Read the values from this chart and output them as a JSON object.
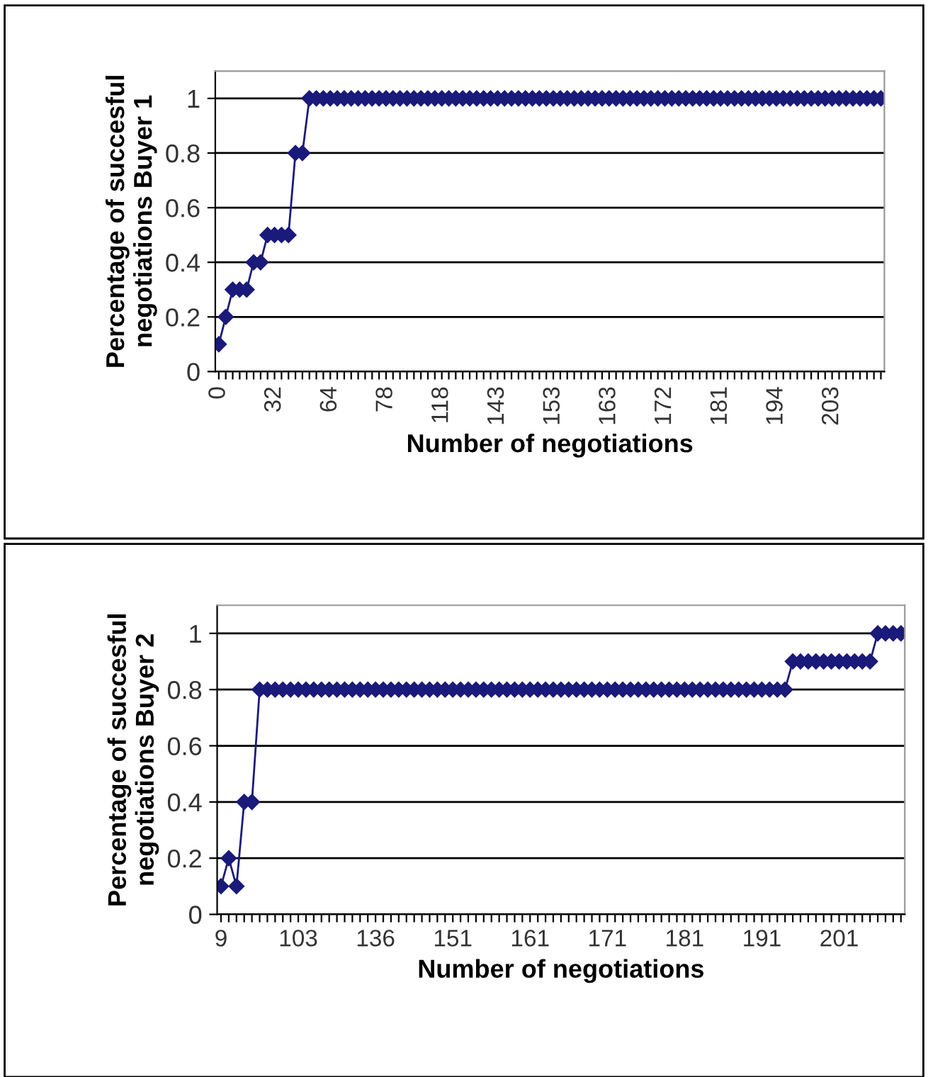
{
  "chart_data": [
    {
      "type": "line",
      "xlabel": "Number of negotiations",
      "ylabel": "Percentage of succesful\nnegotiations Buyer 1",
      "ylim": [
        0,
        1.1
      ],
      "yticks": [
        0,
        0.2,
        0.4,
        0.6,
        0.8,
        1
      ],
      "grid": "y",
      "marker": "diamond",
      "line_style": "solid",
      "legend": false,
      "categories": [
        "0",
        null,
        null,
        null,
        null,
        null,
        null,
        null,
        "32",
        null,
        null,
        null,
        null,
        null,
        null,
        null,
        "64",
        null,
        null,
        null,
        null,
        null,
        null,
        null,
        "78",
        null,
        null,
        null,
        null,
        null,
        null,
        null,
        "118",
        null,
        null,
        null,
        null,
        null,
        null,
        null,
        "143",
        null,
        null,
        null,
        null,
        null,
        null,
        null,
        "153",
        null,
        null,
        null,
        null,
        null,
        null,
        null,
        "163",
        null,
        null,
        null,
        null,
        null,
        null,
        null,
        "172",
        null,
        null,
        null,
        null,
        null,
        null,
        null,
        "181",
        null,
        null,
        null,
        null,
        null,
        null,
        null,
        "194",
        null,
        null,
        null,
        null,
        null,
        null,
        null,
        "203",
        null,
        null,
        null,
        null,
        null,
        null,
        null
      ],
      "series": [
        {
          "color": "#1a1a7a",
          "values": [
            0.1,
            0.2,
            0.3,
            0.3,
            0.3,
            0.4,
            0.4,
            0.5,
            0.5,
            0.5,
            0.5,
            0.8,
            0.8,
            1,
            1,
            1,
            1,
            1,
            1,
            1,
            1,
            1,
            1,
            1,
            1,
            1,
            1,
            1,
            1,
            1,
            1,
            1,
            1,
            1,
            1,
            1,
            1,
            1,
            1,
            1,
            1,
            1,
            1,
            1,
            1,
            1,
            1,
            1,
            1,
            1,
            1,
            1,
            1,
            1,
            1,
            1,
            1,
            1,
            1,
            1,
            1,
            1,
            1,
            1,
            1,
            1,
            1,
            1,
            1,
            1,
            1,
            1,
            1,
            1,
            1,
            1,
            1,
            1,
            1,
            1,
            1,
            1,
            1,
            1,
            1,
            1,
            1,
            1,
            1,
            1,
            1,
            1,
            1,
            1,
            1,
            1
          ]
        }
      ]
    },
    {
      "type": "line",
      "xlabel": "Number of negotiations",
      "ylabel": "Percentage of succesful\nnegotiations Buyer 2",
      "ylim": [
        0,
        1.1
      ],
      "yticks": [
        0,
        0.2,
        0.4,
        0.6,
        0.8,
        1
      ],
      "grid": "y",
      "marker": "diamond",
      "line_style": "solid",
      "legend": false,
      "categories": [
        "9",
        null,
        null,
        null,
        null,
        null,
        null,
        null,
        null,
        null,
        "103",
        null,
        null,
        null,
        null,
        null,
        null,
        null,
        null,
        null,
        "136",
        null,
        null,
        null,
        null,
        null,
        null,
        null,
        null,
        null,
        "151",
        null,
        null,
        null,
        null,
        null,
        null,
        null,
        null,
        null,
        "161",
        null,
        null,
        null,
        null,
        null,
        null,
        null,
        null,
        null,
        "171",
        null,
        null,
        null,
        null,
        null,
        null,
        null,
        null,
        null,
        "181",
        null,
        null,
        null,
        null,
        null,
        null,
        null,
        null,
        null,
        "191",
        null,
        null,
        null,
        null,
        null,
        null,
        null,
        null,
        null,
        "201",
        null,
        null,
        null,
        null,
        null,
        null,
        null,
        null
      ],
      "series": [
        {
          "color": "#1a1a7a",
          "values": [
            0.1,
            0.2,
            0.1,
            0.4,
            0.4,
            0.8,
            0.8,
            0.8,
            0.8,
            0.8,
            0.8,
            0.8,
            0.8,
            0.8,
            0.8,
            0.8,
            0.8,
            0.8,
            0.8,
            0.8,
            0.8,
            0.8,
            0.8,
            0.8,
            0.8,
            0.8,
            0.8,
            0.8,
            0.8,
            0.8,
            0.8,
            0.8,
            0.8,
            0.8,
            0.8,
            0.8,
            0.8,
            0.8,
            0.8,
            0.8,
            0.8,
            0.8,
            0.8,
            0.8,
            0.8,
            0.8,
            0.8,
            0.8,
            0.8,
            0.8,
            0.8,
            0.8,
            0.8,
            0.8,
            0.8,
            0.8,
            0.8,
            0.8,
            0.8,
            0.8,
            0.8,
            0.8,
            0.8,
            0.8,
            0.8,
            0.8,
            0.8,
            0.8,
            0.8,
            0.8,
            0.8,
            0.8,
            0.8,
            0.8,
            0.9,
            0.9,
            0.9,
            0.9,
            0.9,
            0.9,
            0.9,
            0.9,
            0.9,
            0.9,
            0.9,
            1,
            1,
            1,
            1
          ]
        }
      ]
    }
  ]
}
